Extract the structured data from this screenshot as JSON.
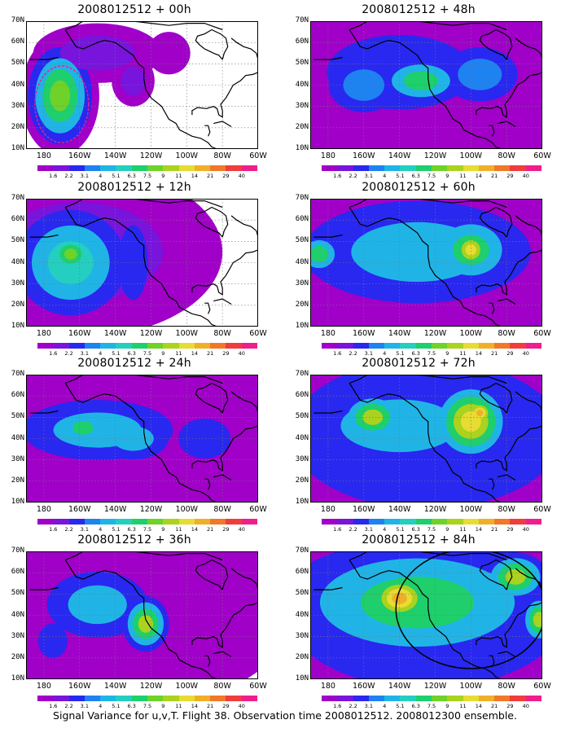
{
  "panels": [
    {
      "title": "2008012512 + 00h"
    },
    {
      "title": "2008012512 + 48h"
    },
    {
      "title": "2008012512 + 12h"
    },
    {
      "title": "2008012512 + 60h"
    },
    {
      "title": "2008012512 + 24h"
    },
    {
      "title": "2008012512 + 72h"
    },
    {
      "title": "2008012512 + 36h"
    },
    {
      "title": "2008012512 + 84h"
    }
  ],
  "lat_labels": [
    "70N",
    "60N",
    "50N",
    "40N",
    "30N",
    "20N",
    "10N"
  ],
  "lon_labels": [
    "180",
    "160W",
    "140W",
    "120W",
    "100W",
    "80W",
    "60W"
  ],
  "colorbar": {
    "labels": [
      "1.6",
      "2.2",
      "3.1",
      "4",
      "5.1",
      "6.3",
      "7.5",
      "9",
      "11",
      "14",
      "21",
      "29",
      "40"
    ],
    "colors": [
      "#a000c8",
      "#7814dc",
      "#2828f0",
      "#1e82f0",
      "#20b4e6",
      "#24cfc0",
      "#1ecf6c",
      "#6ed228",
      "#aad21e",
      "#e6dc32",
      "#f0af28",
      "#f07828",
      "#f03c3c",
      "#f01e8c"
    ]
  },
  "caption": "Signal Variance for u,v,T. Flight 38. Observation time 2008012512. 2008012300 ensemble."
}
